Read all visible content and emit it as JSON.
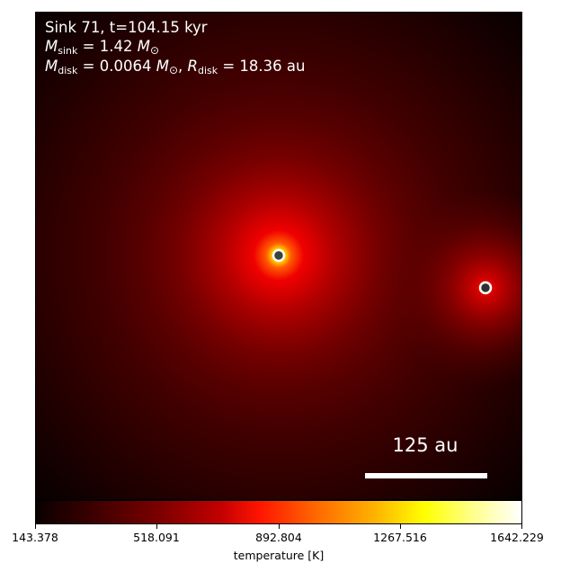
{
  "annotation": {
    "title": "Sink 71, t=104.15 kyr",
    "msink_symbol": "M",
    "msink_sub": "sink",
    "msink_value": " = 1.42 ",
    "msink_unit": "M",
    "mdisk_symbol": "M",
    "mdisk_sub": "disk",
    "mdisk_value": " = 0.0064 ",
    "mdisk_unit": "M",
    "sun_symbol": "⊙",
    "separator": ", ",
    "rdisk_symbol": "R",
    "rdisk_sub": "disk",
    "rdisk_value": " = 18.36 au"
  },
  "scalebar": {
    "label": "125 au"
  },
  "colorbar": {
    "label": "temperature [K]",
    "min": 143.378,
    "max": 1642.229,
    "ticks": [
      "143.378",
      "518.091",
      "892.804",
      "1267.516",
      "1642.229"
    ]
  },
  "colors": {
    "sink_ring": "#ffffff",
    "sink_center": "#404040",
    "primary_glow": "#ffee00",
    "background_dark": "#100000"
  }
}
